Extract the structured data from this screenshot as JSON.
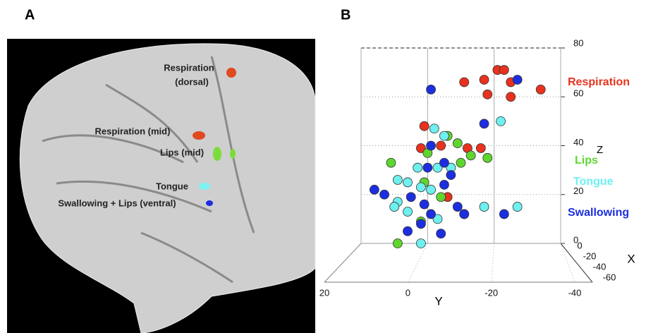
{
  "panel_a": {
    "label": "A",
    "annotations": [
      "Respiration",
      "(dorsal)",
      "Respiration (mid)",
      "Lips (mid)",
      "Tongue",
      "Swallowing + Lips (ventral)"
    ]
  },
  "chart_data": {
    "type": "scatter",
    "panel_label": "B",
    "x_label": "Y",
    "y_label": "Z",
    "depth_label": "X",
    "xlim": [
      20,
      -40
    ],
    "ylim": [
      0,
      80
    ],
    "xticks": [
      20,
      0,
      -20,
      -40
    ],
    "yticks": [
      0,
      20,
      40,
      60,
      80
    ],
    "depth_ticks": [
      0,
      -20,
      -40,
      -60
    ],
    "series": [
      {
        "name": "Respiration",
        "color": "#e8321e",
        "x": [
          -21,
          -23,
          -17,
          -25,
          -11,
          -34,
          -18,
          -25,
          1,
          2,
          -4,
          -12,
          -16,
          -6
        ],
        "y": [
          71,
          71,
          67,
          66,
          66,
          63,
          61,
          60,
          48,
          39,
          40,
          39,
          39,
          19
        ]
      },
      {
        "name": "Lips",
        "color": "#5ed62e",
        "x": [
          11,
          -6,
          -9,
          -13,
          -18,
          -10,
          0,
          -4,
          -11,
          2,
          9,
          1
        ],
        "y": [
          33,
          44,
          41,
          36,
          35,
          33,
          37,
          19,
          12,
          9,
          0,
          25
        ]
      },
      {
        "name": "Tongue",
        "color": "#6ff0f0",
        "x": [
          -2,
          -5,
          -22,
          3,
          9,
          6,
          2,
          -1,
          9,
          10,
          6,
          -3,
          -7,
          -17,
          -27,
          2,
          -3
        ],
        "y": [
          47,
          44,
          50,
          31,
          26,
          25,
          23,
          22,
          17,
          15,
          13,
          31,
          31,
          15,
          15,
          0,
          10
        ]
      },
      {
        "name": "Swallowing",
        "color": "#1c2ee0",
        "x": [
          -1,
          -27,
          -17,
          -1,
          16,
          13,
          5,
          1,
          -9,
          -7,
          -5,
          6,
          2,
          -1,
          -11,
          -4,
          -23,
          -5,
          0
        ],
        "y": [
          63,
          67,
          49,
          40,
          22,
          20,
          19,
          16,
          15,
          28,
          24,
          5,
          8,
          12,
          12,
          4,
          12,
          33,
          31
        ]
      }
    ]
  }
}
